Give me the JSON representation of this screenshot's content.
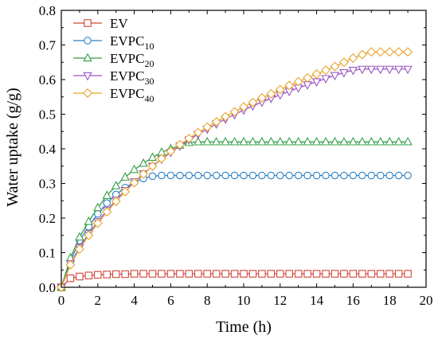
{
  "chart_data": {
    "type": "line",
    "title": "",
    "xlabel": "Time (h)",
    "ylabel": "Water uptake (g/g)",
    "xlim": [
      0,
      20
    ],
    "ylim": [
      0,
      0.8
    ],
    "x_ticks": [
      "0",
      "2",
      "4",
      "6",
      "8",
      "10",
      "12",
      "14",
      "16",
      "18",
      "20"
    ],
    "y_ticks": [
      "0.0",
      "0.1",
      "0.2",
      "0.3",
      "0.4",
      "0.5",
      "0.6",
      "0.7",
      "0.8"
    ],
    "grid": false,
    "legend_position": "top-left",
    "x_step": 0.5,
    "series": [
      {
        "name": "EV",
        "base": "EV",
        "sub": "",
        "marker": "square",
        "color": "#d0453a",
        "values": [
          0.0,
          0.026,
          0.031,
          0.034,
          0.036,
          0.037,
          0.038,
          0.038,
          0.039,
          0.039,
          0.039,
          0.039,
          0.039,
          0.039,
          0.039,
          0.039,
          0.039,
          0.039,
          0.039,
          0.039,
          0.039,
          0.039,
          0.039,
          0.039,
          0.039,
          0.039,
          0.039,
          0.039,
          0.039,
          0.039,
          0.039,
          0.039,
          0.039,
          0.039,
          0.039,
          0.039,
          0.039,
          0.039,
          0.039
        ]
      },
      {
        "name": "EVPC10",
        "base": "EVPC",
        "sub": "10",
        "marker": "circle",
        "color": "#2b7fc2",
        "values": [
          0.0,
          0.075,
          0.135,
          0.175,
          0.212,
          0.243,
          0.268,
          0.288,
          0.303,
          0.314,
          0.321,
          0.323,
          0.323,
          0.323,
          0.323,
          0.323,
          0.323,
          0.323,
          0.323,
          0.323,
          0.323,
          0.323,
          0.323,
          0.323,
          0.323,
          0.323,
          0.323,
          0.323,
          0.323,
          0.323,
          0.323,
          0.323,
          0.323,
          0.323,
          0.323,
          0.323,
          0.323,
          0.323,
          0.323
        ]
      },
      {
        "name": "EVPC20",
        "base": "EVPC",
        "sub": "20",
        "marker": "triangle-up",
        "color": "#35a04a",
        "values": [
          0.0,
          0.085,
          0.145,
          0.19,
          0.23,
          0.265,
          0.293,
          0.318,
          0.34,
          0.358,
          0.375,
          0.39,
          0.4,
          0.41,
          0.418,
          0.42,
          0.42,
          0.42,
          0.42,
          0.42,
          0.42,
          0.42,
          0.42,
          0.42,
          0.42,
          0.42,
          0.42,
          0.42,
          0.42,
          0.42,
          0.42,
          0.42,
          0.42,
          0.42,
          0.42,
          0.42,
          0.42,
          0.42,
          0.42
        ]
      },
      {
        "name": "EVPC30",
        "base": "EVPC",
        "sub": "30",
        "marker": "triangle-down",
        "color": "#9a55c2",
        "values": [
          0.0,
          0.068,
          0.115,
          0.155,
          0.19,
          0.222,
          0.252,
          0.28,
          0.305,
          0.328,
          0.35,
          0.37,
          0.39,
          0.408,
          0.426,
          0.442,
          0.457,
          0.472,
          0.486,
          0.499,
          0.512,
          0.524,
          0.535,
          0.546,
          0.556,
          0.566,
          0.576,
          0.585,
          0.594,
          0.603,
          0.612,
          0.62,
          0.627,
          0.63,
          0.63,
          0.63,
          0.63,
          0.63,
          0.63
        ]
      },
      {
        "name": "EVPC40",
        "base": "EVPC",
        "sub": "40",
        "marker": "diamond",
        "color": "#e8a42c",
        "values": [
          0.0,
          0.065,
          0.11,
          0.15,
          0.185,
          0.218,
          0.248,
          0.276,
          0.302,
          0.327,
          0.35,
          0.372,
          0.393,
          0.412,
          0.43,
          0.447,
          0.463,
          0.478,
          0.493,
          0.507,
          0.521,
          0.534,
          0.547,
          0.559,
          0.571,
          0.583,
          0.594,
          0.605,
          0.616,
          0.627,
          0.638,
          0.65,
          0.662,
          0.672,
          0.68,
          0.68,
          0.68,
          0.68,
          0.68
        ]
      }
    ]
  }
}
